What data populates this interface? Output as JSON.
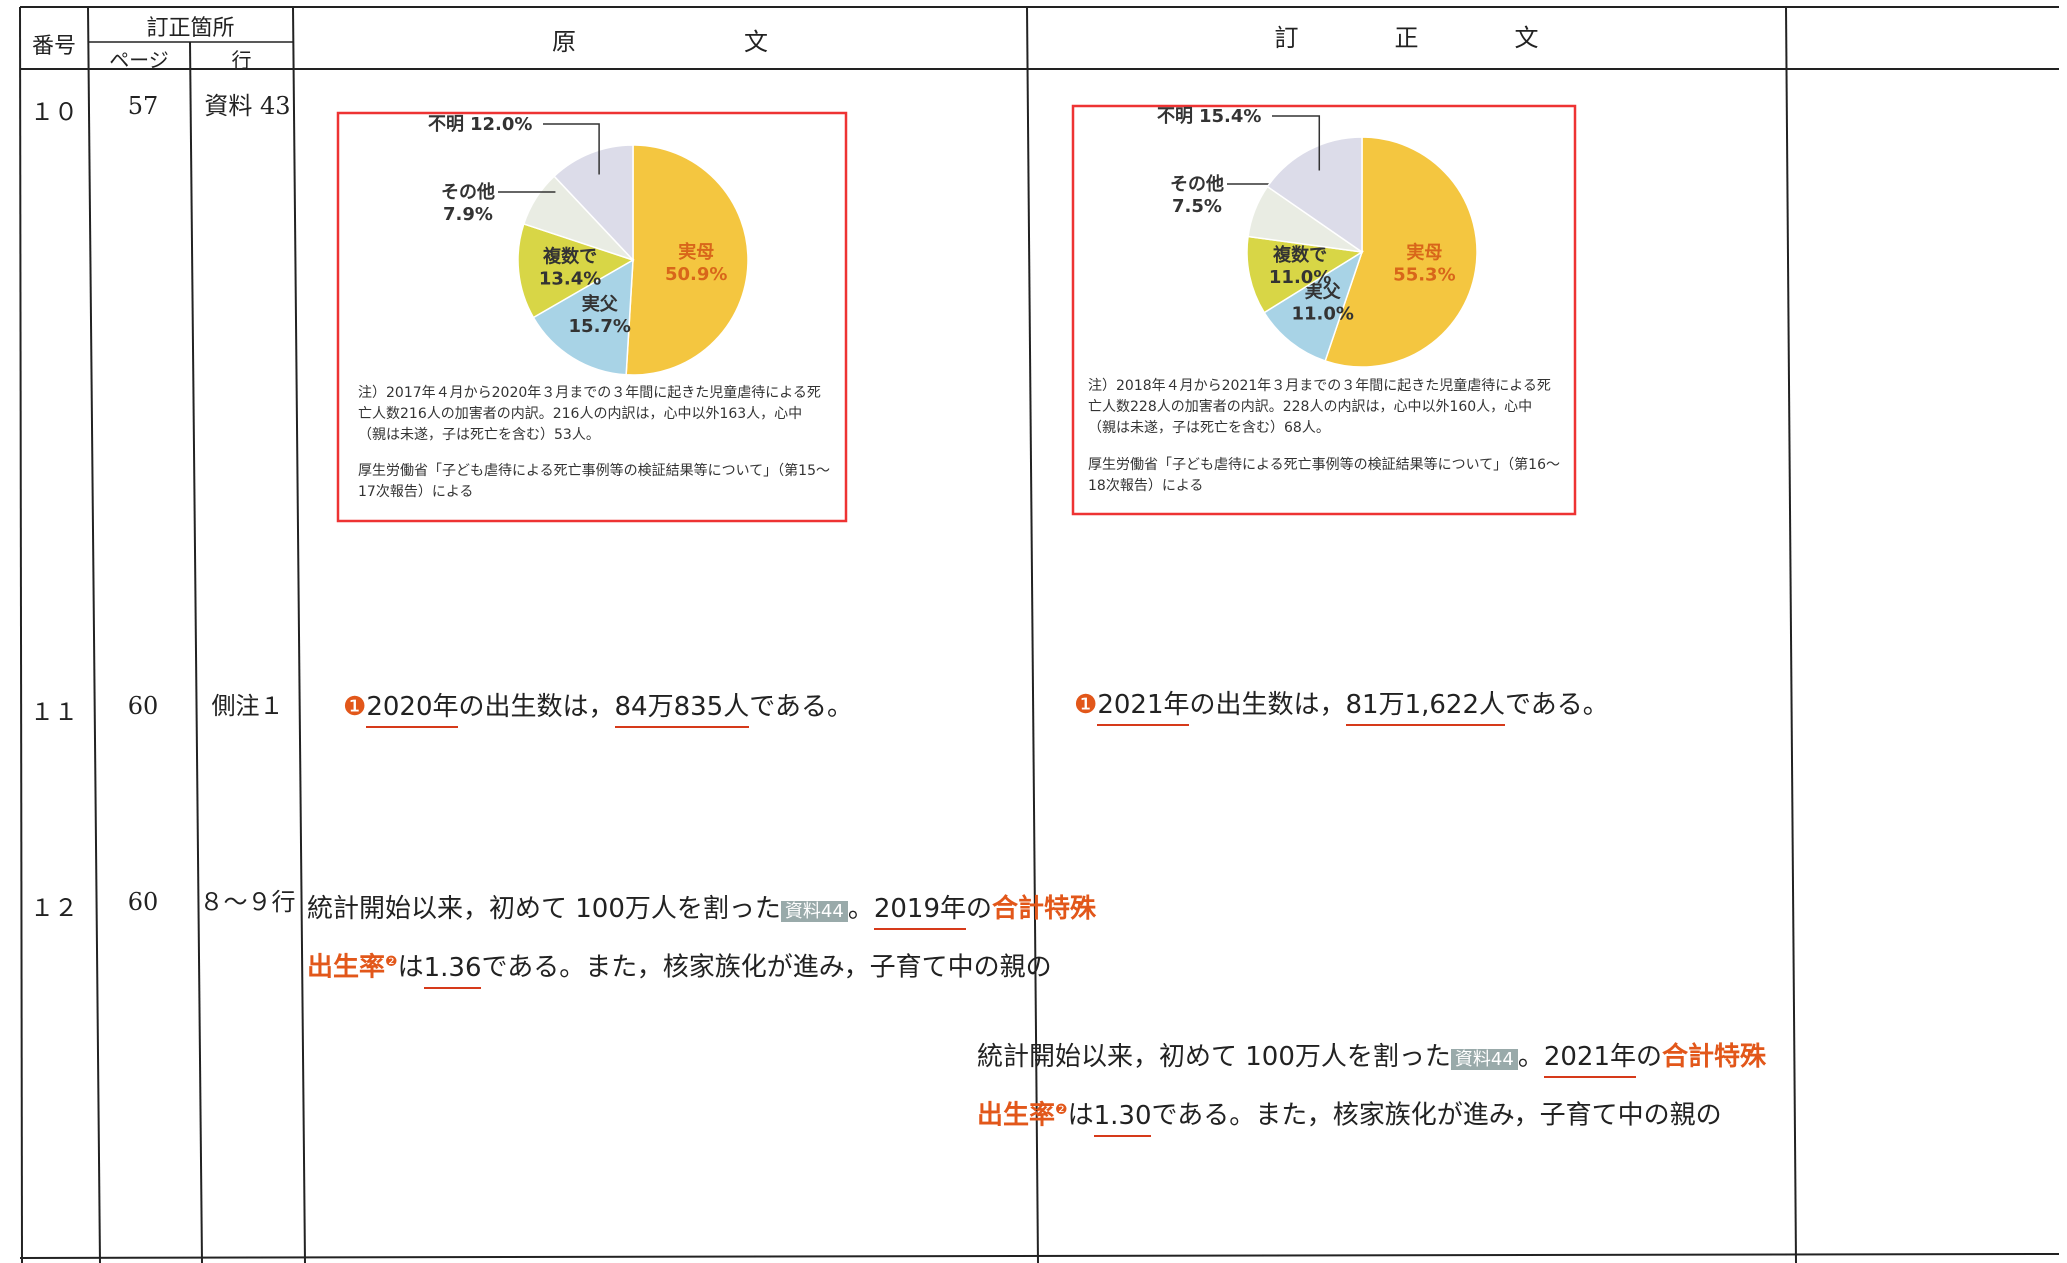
{
  "header": {
    "no": "番号",
    "location": "訂正箇所",
    "page": "ページ",
    "line": "行",
    "original": "原　　　　　　　文",
    "corrected": "訂　　　　正　　　　文"
  },
  "rows": [
    {
      "no": "１０",
      "page": "57",
      "line": "資料 43",
      "original": {
        "chart": {
          "type": "pie",
          "names": [
            "実母",
            "実父",
            "複数で",
            "その他",
            "不明"
          ],
          "values": [
            50.9,
            15.7,
            13.4,
            7.9,
            12.0
          ],
          "value_labels": [
            "50.9%",
            "15.7%",
            "13.4%",
            "7.9%",
            "12.0%"
          ],
          "colors": [
            "#f4c640",
            "#a8d3e6",
            "#d8d646",
            "#e9ece3",
            "#dcdce9"
          ]
        },
        "note": "注）2017年４月から2020年３月までの３年間に起きた児童虐待による死亡人数216人の加害者の内訳。216人の内訳は，心中以外163人，心中（親は未遂，子は死亡を含む）53人。",
        "source": "厚生労働省「子ども虐待による死亡事例等の検証結果等について」（第15〜17次報告）による"
      },
      "corrected": {
        "chart": {
          "type": "pie",
          "names": [
            "実母",
            "実父",
            "複数で",
            "その他",
            "不明"
          ],
          "values": [
            55.3,
            11.0,
            11.0,
            7.5,
            15.4
          ],
          "value_labels": [
            "55.3%",
            "11.0%",
            "11.0%",
            "7.5%",
            "15.4%"
          ],
          "colors": [
            "#f4c640",
            "#a8d3e6",
            "#d8d646",
            "#e9ece3",
            "#dcdce9"
          ]
        },
        "note": "注）2018年４月から2021年３月までの３年間に起きた児童虐待による死亡人数228人の加害者の内訳。228人の内訳は，心中以外160人，心中（親は未遂，子は死亡を含む）68人。",
        "source": "厚生労働省「子ども虐待による死亡事例等の検証結果等について」（第16〜18次報告）による"
      }
    },
    {
      "no": "１１",
      "page": "60",
      "line": "側注１",
      "original": {
        "parts": [
          "❶",
          "2020年",
          "の出生数は，",
          "84万835人",
          "である。"
        ]
      },
      "corrected": {
        "parts": [
          "❶",
          "2021年",
          "の出生数は，",
          "81万1,622人",
          "である。"
        ]
      }
    },
    {
      "no": "１２",
      "page": "60",
      "line": "８〜９行",
      "original": {
        "parts": [
          "統計開始以来，初めて 100万人を割った",
          "資料44",
          "。",
          "2019年",
          "の",
          "合計特殊出生率",
          "❷",
          "は",
          "1.36",
          "である。また，核家族化が進み，子育て中の親の"
        ]
      },
      "corrected": {
        "parts": [
          "統計開始以来，初めて 100万人を割った",
          "資料44",
          "。",
          "2021年",
          "の",
          "合計特殊出生率",
          "❷",
          "は",
          "1.30",
          "である。また，核家族化が進み，子育て中の親の"
        ]
      }
    }
  ]
}
